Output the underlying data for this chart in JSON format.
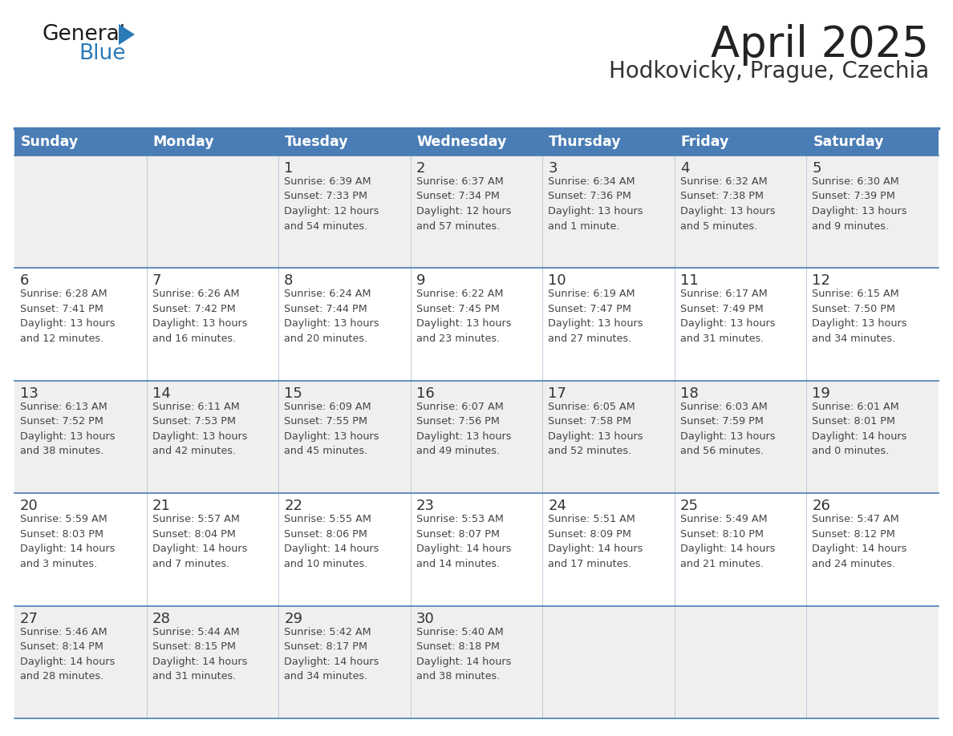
{
  "title": "April 2025",
  "subtitle": "Hodkovicky, Prague, Czechia",
  "header_bg": "#4a7db5",
  "header_text": "#ffffff",
  "row_bg_even": "#efefef",
  "row_bg_odd": "#ffffff",
  "day_number_color": "#333333",
  "cell_text_color": "#444444",
  "header_days": [
    "Sunday",
    "Monday",
    "Tuesday",
    "Wednesday",
    "Thursday",
    "Friday",
    "Saturday"
  ],
  "title_color": "#222222",
  "subtitle_color": "#333333",
  "grid_line_color": "#4a7db5",
  "calendar_data": [
    [
      {
        "day": "",
        "info": ""
      },
      {
        "day": "",
        "info": ""
      },
      {
        "day": "1",
        "info": "Sunrise: 6:39 AM\nSunset: 7:33 PM\nDaylight: 12 hours\nand 54 minutes."
      },
      {
        "day": "2",
        "info": "Sunrise: 6:37 AM\nSunset: 7:34 PM\nDaylight: 12 hours\nand 57 minutes."
      },
      {
        "day": "3",
        "info": "Sunrise: 6:34 AM\nSunset: 7:36 PM\nDaylight: 13 hours\nand 1 minute."
      },
      {
        "day": "4",
        "info": "Sunrise: 6:32 AM\nSunset: 7:38 PM\nDaylight: 13 hours\nand 5 minutes."
      },
      {
        "day": "5",
        "info": "Sunrise: 6:30 AM\nSunset: 7:39 PM\nDaylight: 13 hours\nand 9 minutes."
      }
    ],
    [
      {
        "day": "6",
        "info": "Sunrise: 6:28 AM\nSunset: 7:41 PM\nDaylight: 13 hours\nand 12 minutes."
      },
      {
        "day": "7",
        "info": "Sunrise: 6:26 AM\nSunset: 7:42 PM\nDaylight: 13 hours\nand 16 minutes."
      },
      {
        "day": "8",
        "info": "Sunrise: 6:24 AM\nSunset: 7:44 PM\nDaylight: 13 hours\nand 20 minutes."
      },
      {
        "day": "9",
        "info": "Sunrise: 6:22 AM\nSunset: 7:45 PM\nDaylight: 13 hours\nand 23 minutes."
      },
      {
        "day": "10",
        "info": "Sunrise: 6:19 AM\nSunset: 7:47 PM\nDaylight: 13 hours\nand 27 minutes."
      },
      {
        "day": "11",
        "info": "Sunrise: 6:17 AM\nSunset: 7:49 PM\nDaylight: 13 hours\nand 31 minutes."
      },
      {
        "day": "12",
        "info": "Sunrise: 6:15 AM\nSunset: 7:50 PM\nDaylight: 13 hours\nand 34 minutes."
      }
    ],
    [
      {
        "day": "13",
        "info": "Sunrise: 6:13 AM\nSunset: 7:52 PM\nDaylight: 13 hours\nand 38 minutes."
      },
      {
        "day": "14",
        "info": "Sunrise: 6:11 AM\nSunset: 7:53 PM\nDaylight: 13 hours\nand 42 minutes."
      },
      {
        "day": "15",
        "info": "Sunrise: 6:09 AM\nSunset: 7:55 PM\nDaylight: 13 hours\nand 45 minutes."
      },
      {
        "day": "16",
        "info": "Sunrise: 6:07 AM\nSunset: 7:56 PM\nDaylight: 13 hours\nand 49 minutes."
      },
      {
        "day": "17",
        "info": "Sunrise: 6:05 AM\nSunset: 7:58 PM\nDaylight: 13 hours\nand 52 minutes."
      },
      {
        "day": "18",
        "info": "Sunrise: 6:03 AM\nSunset: 7:59 PM\nDaylight: 13 hours\nand 56 minutes."
      },
      {
        "day": "19",
        "info": "Sunrise: 6:01 AM\nSunset: 8:01 PM\nDaylight: 14 hours\nand 0 minutes."
      }
    ],
    [
      {
        "day": "20",
        "info": "Sunrise: 5:59 AM\nSunset: 8:03 PM\nDaylight: 14 hours\nand 3 minutes."
      },
      {
        "day": "21",
        "info": "Sunrise: 5:57 AM\nSunset: 8:04 PM\nDaylight: 14 hours\nand 7 minutes."
      },
      {
        "day": "22",
        "info": "Sunrise: 5:55 AM\nSunset: 8:06 PM\nDaylight: 14 hours\nand 10 minutes."
      },
      {
        "day": "23",
        "info": "Sunrise: 5:53 AM\nSunset: 8:07 PM\nDaylight: 14 hours\nand 14 minutes."
      },
      {
        "day": "24",
        "info": "Sunrise: 5:51 AM\nSunset: 8:09 PM\nDaylight: 14 hours\nand 17 minutes."
      },
      {
        "day": "25",
        "info": "Sunrise: 5:49 AM\nSunset: 8:10 PM\nDaylight: 14 hours\nand 21 minutes."
      },
      {
        "day": "26",
        "info": "Sunrise: 5:47 AM\nSunset: 8:12 PM\nDaylight: 14 hours\nand 24 minutes."
      }
    ],
    [
      {
        "day": "27",
        "info": "Sunrise: 5:46 AM\nSunset: 8:14 PM\nDaylight: 14 hours\nand 28 minutes."
      },
      {
        "day": "28",
        "info": "Sunrise: 5:44 AM\nSunset: 8:15 PM\nDaylight: 14 hours\nand 31 minutes."
      },
      {
        "day": "29",
        "info": "Sunrise: 5:42 AM\nSunset: 8:17 PM\nDaylight: 14 hours\nand 34 minutes."
      },
      {
        "day": "30",
        "info": "Sunrise: 5:40 AM\nSunset: 8:18 PM\nDaylight: 14 hours\nand 38 minutes."
      },
      {
        "day": "",
        "info": ""
      },
      {
        "day": "",
        "info": ""
      },
      {
        "day": "",
        "info": ""
      }
    ]
  ]
}
